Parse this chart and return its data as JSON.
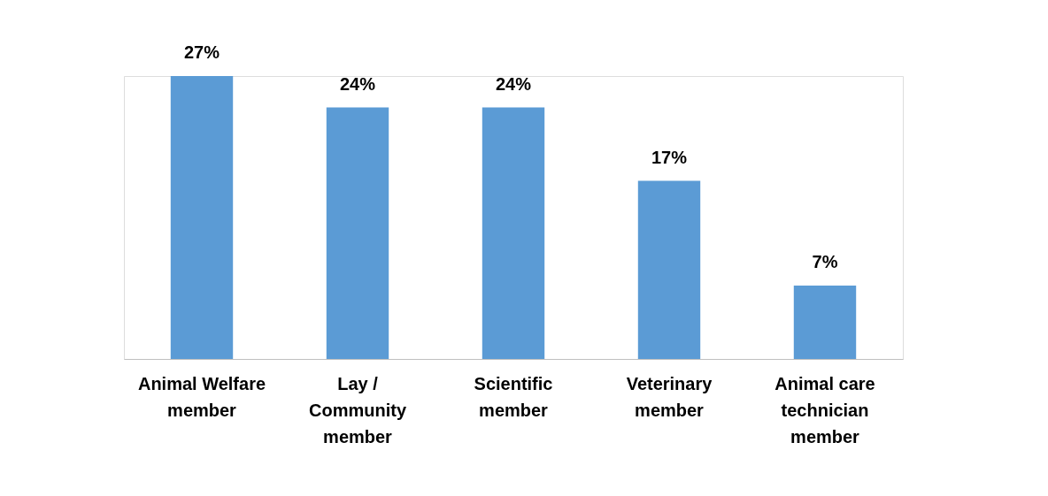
{
  "chart_data": {
    "type": "bar",
    "categories": [
      "Animal Welfare member",
      "Lay / Community member",
      "Scientific member",
      "Veterinary member",
      "Animal care technician member"
    ],
    "values": [
      27,
      24,
      24,
      17,
      7
    ],
    "value_labels": [
      "27%",
      "24%",
      "24%",
      "17%",
      "7%"
    ],
    "color": "#5b9bd5"
  }
}
